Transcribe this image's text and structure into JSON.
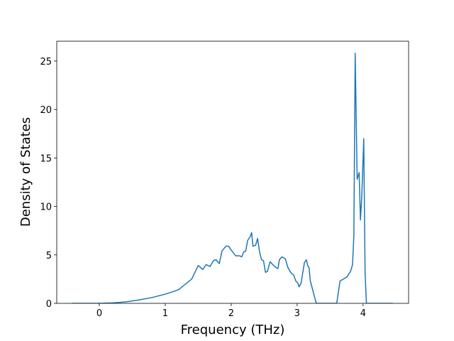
{
  "chart_data": {
    "type": "line",
    "x_label": "Frequency (THz)",
    "y_label": "Density of States",
    "x": [
      -0.41,
      0,
      0.2,
      0.4,
      0.6,
      0.8,
      1.0,
      1.2,
      1.4,
      1.5,
      1.57,
      1.62,
      1.68,
      1.73,
      1.77,
      1.82,
      1.86,
      1.92,
      1.96,
      2.0,
      2.07,
      2.13,
      2.16,
      2.19,
      2.22,
      2.25,
      2.29,
      2.31,
      2.33,
      2.37,
      2.4,
      2.43,
      2.46,
      2.49,
      2.52,
      2.55,
      2.59,
      2.63,
      2.68,
      2.71,
      2.73,
      2.77,
      2.82,
      2.86,
      2.9,
      2.95,
      2.98,
      3.01,
      3.03,
      3.06,
      3.11,
      3.14,
      3.16,
      3.18,
      3.2,
      3.29,
      3.6,
      3.65,
      3.7,
      3.75,
      3.81,
      3.84,
      3.86,
      3.88,
      3.91,
      3.94,
      3.96,
      3.98,
      4.01,
      4.03,
      4.05,
      4.45
    ],
    "series": [
      {
        "color": "#1f77b4",
        "values": [
          0,
          0,
          0.05,
          0.15,
          0.35,
          0.6,
          0.95,
          1.4,
          2.5,
          3.9,
          3.5,
          4.0,
          3.8,
          4.4,
          4.5,
          4.1,
          5.4,
          5.9,
          5.9,
          5.5,
          4.9,
          4.9,
          4.8,
          5.3,
          5.4,
          6.5,
          6.9,
          7.3,
          5.9,
          6.0,
          6.7,
          5.3,
          4.5,
          4.4,
          3.2,
          3.3,
          4.3,
          4.0,
          3.7,
          3.6,
          4.5,
          4.8,
          4.6,
          3.7,
          3.2,
          2.9,
          2.3,
          2.1,
          1.7,
          2.1,
          4.2,
          4.5,
          3.9,
          3.7,
          2.3,
          0,
          0,
          2.3,
          2.5,
          2.7,
          3.3,
          4.0,
          7.0,
          25.8,
          12.8,
          13.5,
          8.6,
          11.0,
          17.0,
          3.2,
          0,
          0
        ]
      }
    ],
    "xlim": [
      -0.645,
      4.69
    ],
    "ylim": [
      0,
      27.05
    ],
    "xticks": [
      0,
      1,
      2,
      3,
      4
    ],
    "yticks": [
      0,
      5,
      10,
      15,
      20,
      25
    ]
  }
}
